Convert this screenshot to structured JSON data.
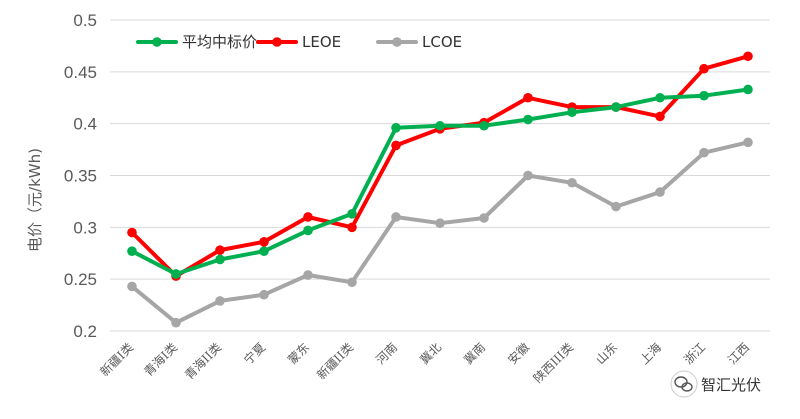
{
  "chart_data": {
    "type": "line",
    "title": "",
    "xlabel": "",
    "ylabel": "电价（元/kWh)",
    "ylim": [
      0.2,
      0.5
    ],
    "yticks": [
      "0.2",
      "0.25",
      "0.3",
      "0.35",
      "0.4",
      "0.45",
      "0.5"
    ],
    "grid": true,
    "legend_position": "top-left",
    "categories": [
      "新疆I类",
      "青海I类",
      "青海II类",
      "宁夏",
      "蒙东",
      "新疆II类",
      "河南",
      "冀北",
      "冀南",
      "安徽",
      "陕西III类",
      "山东",
      "上海",
      "浙江",
      "江西"
    ],
    "series": [
      {
        "name": "平均中标价",
        "color": "#00B050",
        "values": [
          0.277,
          0.255,
          0.269,
          0.277,
          0.297,
          0.313,
          0.396,
          0.398,
          0.398,
          0.404,
          0.411,
          0.416,
          0.425,
          0.427,
          0.433
        ]
      },
      {
        "name": "LEOE",
        "color": "#FF0000",
        "values": [
          0.295,
          0.253,
          0.278,
          0.286,
          0.31,
          0.3,
          0.379,
          0.395,
          0.401,
          0.425,
          0.416,
          0.416,
          0.407,
          0.453,
          0.465
        ]
      },
      {
        "name": "LCOE",
        "color": "#A6A6A6",
        "values": [
          0.243,
          0.208,
          0.229,
          0.235,
          0.254,
          0.247,
          0.31,
          0.304,
          0.309,
          0.35,
          0.343,
          0.32,
          0.334,
          0.372,
          0.382
        ]
      }
    ]
  },
  "watermark": {
    "text": "智汇光伏",
    "icon": "wechat-icon"
  }
}
